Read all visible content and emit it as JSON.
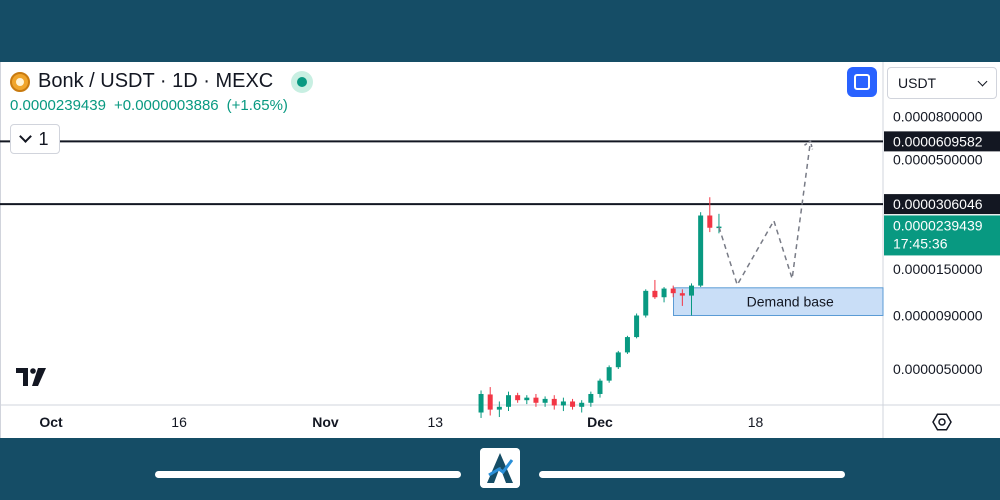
{
  "header": {
    "title": "Bonk / USDT · 1D · MEXC",
    "price": "0.0000239439",
    "change": "+0.0000003886",
    "change_pct": "(+1.65%)"
  },
  "collapse_count": "1",
  "currency": "USDT",
  "colors": {
    "up": "#089981",
    "down": "#f23645",
    "zone": "#bbd6f5",
    "band": "#154d66"
  },
  "chart_data": {
    "type": "candlestick",
    "symbol": "Bonk / USDT",
    "interval": "1D",
    "exchange": "MEXC",
    "y_scale": "log",
    "price_axis_labels": [
      "0.0000800000",
      "0.0000500000",
      "0.0000150000",
      "0.0000090000",
      "0.0000050000"
    ],
    "time_axis_labels": [
      "Oct",
      "16",
      "Nov",
      "13",
      "Dec",
      "18"
    ],
    "horizontal_lines": [
      {
        "label": "0.0000609582",
        "value": 6.09582e-05
      },
      {
        "label": "0.0000306046",
        "value": 3.06046e-05
      }
    ],
    "current_price": {
      "label": "0.0000239439",
      "value": 2.39439e-05,
      "countdown": "17:45:36"
    },
    "annotations": [
      {
        "type": "zone",
        "text": "Demand base",
        "low": 9e-06,
        "high": 1.22e-05
      }
    ],
    "projection": [
      2.38e-05,
      1.26e-05,
      2.55e-05,
      1.35e-05,
      6.1e-05
    ],
    "candles": [
      {
        "date": "2023-11-18",
        "o": 3.1e-06,
        "h": 3.95e-06,
        "l": 2.92e-06,
        "c": 3.8e-06
      },
      {
        "date": "2023-11-19",
        "o": 3.78e-06,
        "h": 4.1e-06,
        "l": 3e-06,
        "c": 3.2e-06
      },
      {
        "date": "2023-11-20",
        "o": 3.2e-06,
        "h": 3.5e-06,
        "l": 2.95e-06,
        "c": 3.3e-06
      },
      {
        "date": "2023-11-21",
        "o": 3.3e-06,
        "h": 3.9e-06,
        "l": 3.15e-06,
        "c": 3.75e-06
      },
      {
        "date": "2023-11-22",
        "o": 3.75e-06,
        "h": 3.85e-06,
        "l": 3.45e-06,
        "c": 3.55e-06
      },
      {
        "date": "2023-11-23",
        "o": 3.55e-06,
        "h": 3.75e-06,
        "l": 3.4e-06,
        "c": 3.65e-06
      },
      {
        "date": "2023-11-24",
        "o": 3.65e-06,
        "h": 3.8e-06,
        "l": 3.3e-06,
        "c": 3.45e-06
      },
      {
        "date": "2023-11-25",
        "o": 3.45e-06,
        "h": 3.7e-06,
        "l": 3.3e-06,
        "c": 3.6e-06
      },
      {
        "date": "2023-11-26",
        "o": 3.6e-06,
        "h": 3.75e-06,
        "l": 3.2e-06,
        "c": 3.35e-06
      },
      {
        "date": "2023-11-27",
        "o": 3.35e-06,
        "h": 3.65e-06,
        "l": 3.15e-06,
        "c": 3.5e-06
      },
      {
        "date": "2023-11-28",
        "o": 3.5e-06,
        "h": 3.6e-06,
        "l": 3.2e-06,
        "c": 3.3e-06
      },
      {
        "date": "2023-11-29",
        "o": 3.3e-06,
        "h": 3.55e-06,
        "l": 3.1e-06,
        "c": 3.45e-06
      },
      {
        "date": "2023-11-30",
        "o": 3.45e-06,
        "h": 3.9e-06,
        "l": 3.3e-06,
        "c": 3.8e-06
      },
      {
        "date": "2023-12-01",
        "o": 3.8e-06,
        "h": 4.5e-06,
        "l": 3.65e-06,
        "c": 4.4e-06
      },
      {
        "date": "2023-12-02",
        "o": 4.4e-06,
        "h": 5.2e-06,
        "l": 4.3e-06,
        "c": 5.1e-06
      },
      {
        "date": "2023-12-03",
        "o": 5.1e-06,
        "h": 6.1e-06,
        "l": 5e-06,
        "c": 6e-06
      },
      {
        "date": "2023-12-04",
        "o": 6e-06,
        "h": 7.2e-06,
        "l": 5.9e-06,
        "c": 7.1e-06
      },
      {
        "date": "2023-12-05",
        "o": 7.1e-06,
        "h": 9.2e-06,
        "l": 7e-06,
        "c": 9e-06
      },
      {
        "date": "2023-12-06",
        "o": 9e-06,
        "h": 1.2e-05,
        "l": 8.8e-06,
        "c": 1.18e-05
      },
      {
        "date": "2023-12-07",
        "o": 1.18e-05,
        "h": 1.33e-05,
        "l": 1.08e-05,
        "c": 1.1e-05
      },
      {
        "date": "2023-12-08",
        "o": 1.1e-05,
        "h": 1.23e-05,
        "l": 1.04e-05,
        "c": 1.21e-05
      },
      {
        "date": "2023-12-09",
        "o": 1.21e-05,
        "h": 1.25e-05,
        "l": 1.1e-05,
        "c": 1.15e-05
      },
      {
        "date": "2023-12-10",
        "o": 1.15e-05,
        "h": 1.2e-05,
        "l": 1e-05,
        "c": 1.12e-05
      },
      {
        "date": "2023-12-11",
        "o": 1.12e-05,
        "h": 1.28e-05,
        "l": 9e-06,
        "c": 1.25e-05
      },
      {
        "date": "2023-12-12",
        "o": 1.25e-05,
        "h": 2.8e-05,
        "l": 1.23e-05,
        "c": 2.7e-05
      },
      {
        "date": "2023-12-13",
        "o": 2.7e-05,
        "h": 3.3e-05,
        "l": 2.25e-05,
        "c": 2.36e-05
      },
      {
        "date": "2023-12-14",
        "o": 2.36e-05,
        "h": 2.75e-05,
        "l": 2.22e-05,
        "c": 2.39e-05
      }
    ]
  }
}
